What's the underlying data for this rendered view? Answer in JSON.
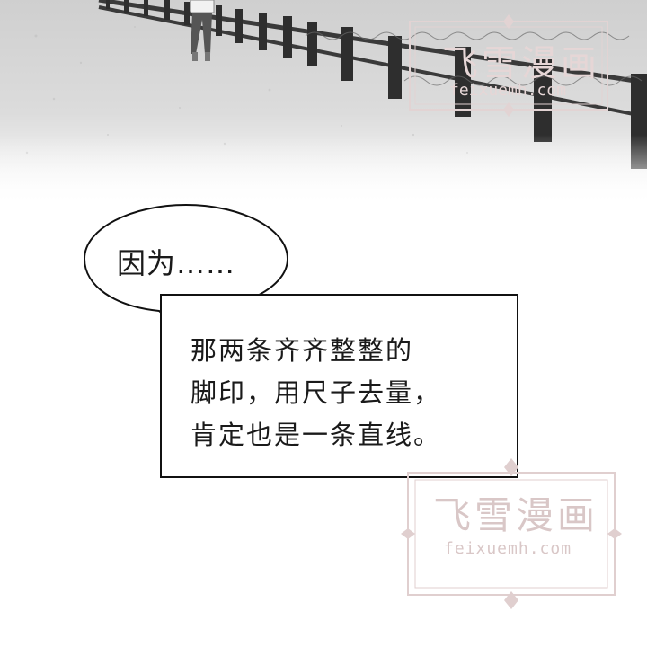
{
  "speech_bubble": {
    "text": "因为……"
  },
  "caption": {
    "lines": [
      "那两条齐齐整整的",
      "脚印，用尺子去量，",
      "肯定也是一条直线。"
    ]
  },
  "watermarks": [
    {
      "title": "飞雪漫画",
      "domain": "feixuemh.com"
    },
    {
      "title": "飞雪漫画",
      "domain": "feixuemh.com"
    }
  ],
  "colors": {
    "background": "#ffffff",
    "ink": "#111111",
    "watermark": "#d9c7c7"
  }
}
